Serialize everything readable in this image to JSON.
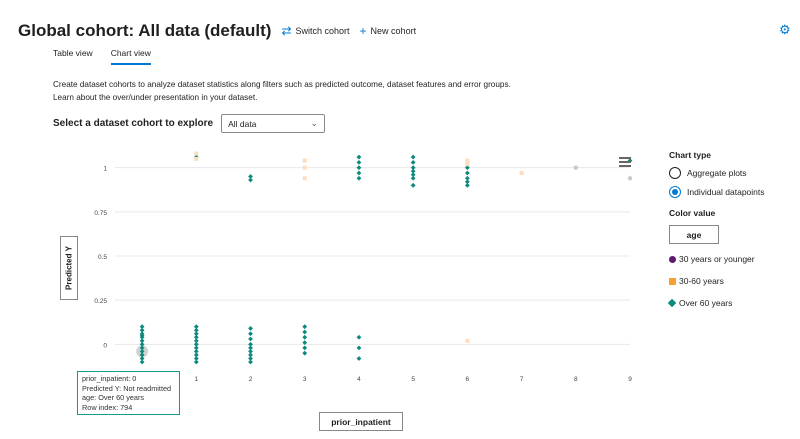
{
  "header": {
    "title": "Global cohort: All data (default)",
    "switch_cohort_label": "Switch cohort",
    "switch_icon": "switch-arrows-icon",
    "new_cohort_label": "New cohort",
    "new_icon": "plus-icon",
    "settings_icon": "gear-icon"
  },
  "tabs": [
    {
      "label": "Table view",
      "active": false
    },
    {
      "label": "Chart view",
      "active": true
    }
  ],
  "description": "Create dataset cohorts to analyze dataset statistics along filters such as predicted outcome, dataset features and error groups. Learn about the over/under presentation in your dataset.",
  "selector": {
    "label": "Select a dataset cohort to explore",
    "value": "All data"
  },
  "chart_controls": {
    "y_axis_button": "Predicted Y",
    "x_axis_button": "prior_inpatient"
  },
  "tooltip": [
    "prior_inpatient: 0",
    "Predicted Y: Not readmitted",
    "age: Over 60 years",
    "Row index: 794"
  ],
  "right_panel": {
    "chart_type_heading": "Chart type",
    "chart_types": [
      {
        "label": "Aggregate plots",
        "selected": false
      },
      {
        "label": "Individual datapoints",
        "selected": true
      }
    ],
    "color_value_heading": "Color value",
    "color_value_button": "age",
    "legend": [
      {
        "label": "30 years or younger",
        "color": "#5c1a6e",
        "shape": "circle"
      },
      {
        "label": "30-60 years",
        "color": "#f5a031",
        "shape": "square"
      },
      {
        "label": "Over 60 years",
        "color": "#0e8a7d",
        "shape": "diamond"
      }
    ]
  },
  "chart_data": {
    "type": "scatter",
    "xlabel": "prior_inpatient",
    "ylabel": "Predicted Y",
    "x_ticks": [
      "0",
      "1",
      "2",
      "3",
      "4",
      "5",
      "6",
      "7",
      "8",
      "9"
    ],
    "y_ticks": [
      "0",
      "0.25",
      "0.5",
      "0.75",
      "1"
    ],
    "xlim": [
      -0.5,
      9.0
    ],
    "ylim": [
      -0.1,
      1.1
    ],
    "colors": {
      "over60": "#0e8a7d",
      "mid": "#fddcc0",
      "gray": "#c8c8c8"
    },
    "series": [
      {
        "name": "Over 60 years",
        "color_key": "over60",
        "x": [
          0,
          0,
          0,
          0,
          0,
          0,
          0,
          0,
          0,
          0,
          0,
          0,
          1,
          1,
          1,
          1,
          1,
          1,
          1,
          1,
          1,
          1,
          1,
          2,
          2,
          2,
          2,
          2,
          2,
          2,
          2,
          2,
          3,
          3,
          3,
          3,
          3,
          3,
          4,
          4,
          4,
          1,
          2,
          2,
          4,
          4,
          4,
          4,
          4,
          5,
          5,
          5,
          5,
          5,
          5,
          5,
          6,
          6,
          6,
          6,
          6,
          9
        ],
        "y": [
          0.1,
          0.08,
          0.06,
          0.04,
          0.02,
          0,
          -0.02,
          -0.04,
          -0.06,
          -0.08,
          -0.1,
          0.05,
          0.1,
          0.08,
          0.06,
          0.04,
          0.02,
          0,
          -0.02,
          -0.04,
          -0.06,
          -0.08,
          -0.1,
          0.09,
          0.06,
          0.03,
          0.0,
          -0.02,
          -0.04,
          -0.06,
          -0.08,
          -0.1,
          0.1,
          0.07,
          0.04,
          0.01,
          -0.02,
          -0.05,
          0.04,
          -0.02,
          -0.08,
          1.06,
          0.95,
          0.93,
          1.06,
          1.03,
          1.0,
          0.97,
          0.94,
          1.06,
          1.03,
          1.0,
          0.98,
          0.96,
          0.94,
          0.9,
          1.0,
          0.97,
          0.94,
          0.92,
          0.9,
          1.04
        ]
      },
      {
        "name": "30-60 years",
        "color_key": "mid",
        "x": [
          1,
          1,
          3,
          3,
          3,
          6,
          6,
          7,
          6
        ],
        "y": [
          1.08,
          1.05,
          1.04,
          1.0,
          0.94,
          1.04,
          1.02,
          0.97,
          0.02
        ],
        "shape": "square"
      },
      {
        "name": "Other",
        "color_key": "gray",
        "x": [
          8,
          9
        ],
        "y": [
          1.0,
          0.94
        ],
        "shape": "circle"
      }
    ]
  }
}
